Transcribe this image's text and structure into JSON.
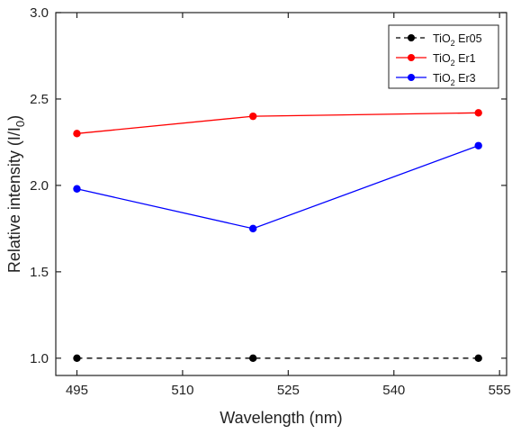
{
  "chart_data": {
    "type": "line",
    "title": "",
    "xlabel": "Wavelength (nm)",
    "ylabel": {
      "main": "Relative intensity (I/I",
      "sub": "0",
      "end": ")"
    },
    "xlim": [
      492,
      556
    ],
    "ylim": [
      0.9,
      3.0
    ],
    "xticks": [
      495,
      510,
      525,
      540,
      555
    ],
    "yticks": [
      1.0,
      1.5,
      2.0,
      2.5,
      3.0
    ],
    "x": [
      495,
      520,
      552
    ],
    "series": [
      {
        "name": {
          "pre": "TiO",
          "sub": "2",
          "post": " Er05"
        },
        "color": "#000000",
        "dash": true,
        "values": [
          1.0,
          1.0,
          1.0
        ]
      },
      {
        "name": {
          "pre": "TiO",
          "sub": "2",
          "post": " Er1"
        },
        "color": "#ff0000",
        "dash": false,
        "values": [
          2.3,
          2.4,
          2.42
        ]
      },
      {
        "name": {
          "pre": "TiO",
          "sub": "2",
          "post": " Er3"
        },
        "color": "#0000ff",
        "dash": false,
        "values": [
          1.98,
          1.75,
          2.23
        ]
      }
    ],
    "grid": false,
    "legend_position": "top-right"
  }
}
